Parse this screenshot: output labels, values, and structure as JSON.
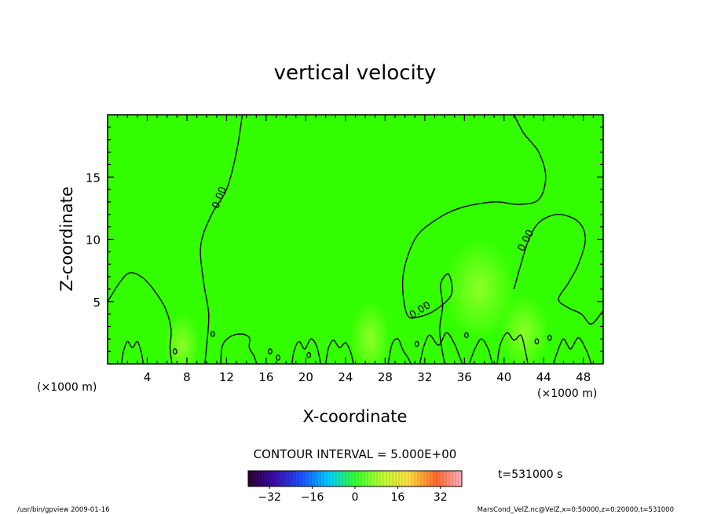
{
  "chart_data": {
    "type": "heatmap",
    "title": "vertical velocity",
    "xlabel": "X-coordinate",
    "ylabel": "Z-coordinate",
    "x_unit_left": "(×1000 m)",
    "x_unit_right": "(×1000 m)",
    "xlim": [
      0,
      50
    ],
    "ylim": [
      0,
      20
    ],
    "x_ticks": [
      4,
      8,
      12,
      16,
      20,
      24,
      28,
      32,
      36,
      40,
      44,
      48
    ],
    "x_tick_labels": [
      "4",
      "8",
      "12",
      "16",
      "20",
      "24",
      "28",
      "32",
      "36",
      "40",
      "44",
      "48"
    ],
    "y_ticks": [
      5,
      10,
      15
    ],
    "y_tick_labels": [
      "5",
      "10",
      "15"
    ],
    "contour_interval_label": "CONTOUR INTERVAL = 5.000E+00",
    "contour_labels": [
      "0.00",
      "0.00",
      "0.00"
    ],
    "time_label": "t=531000 s",
    "colorbar": {
      "ticks": [
        -32,
        -16,
        0,
        16,
        32
      ],
      "tick_labels": [
        "−32",
        "−16",
        "0",
        "16",
        "32"
      ],
      "range": [
        -40,
        40
      ]
    },
    "field_value_approx": 0,
    "background_color": "#33ff00",
    "highlight_color": "#b4ff3c",
    "footer_left": "/usr/bin/gpview   2009-01-16",
    "footer_right": "MarsCond_VelZ.nc@VelZ,x=0:50000,z=0:20000,t=531000",
    "zero_contours": [
      {
        "points": [
          [
            13.6,
            20
          ],
          [
            13,
            17
          ],
          [
            12,
            14
          ],
          [
            10.5,
            12
          ],
          [
            9.4,
            9.5
          ],
          [
            9.7,
            6.5
          ],
          [
            10.2,
            4
          ],
          [
            10,
            1.5
          ],
          [
            9.8,
            0
          ]
        ]
      },
      {
        "points": [
          [
            0,
            5
          ],
          [
            1.2,
            6.5
          ],
          [
            2.2,
            7.3
          ],
          [
            3.4,
            7
          ],
          [
            4.6,
            6
          ],
          [
            5.8,
            4.5
          ],
          [
            6.4,
            2.8
          ],
          [
            6.3,
            1.3
          ],
          [
            6.5,
            0
          ]
        ]
      },
      {
        "points": [
          [
            41,
            20
          ],
          [
            42,
            18.5
          ],
          [
            43.5,
            17
          ],
          [
            44.2,
            15
          ],
          [
            43.5,
            13.2
          ],
          [
            41.5,
            12.8
          ],
          [
            39,
            13
          ],
          [
            35.5,
            12.5
          ],
          [
            33,
            11.5
          ],
          [
            31,
            10
          ],
          [
            29.8,
            7
          ],
          [
            30.2,
            4
          ],
          [
            31.5,
            3.8
          ],
          [
            33.2,
            4.4
          ],
          [
            34.7,
            5.6
          ],
          [
            34.4,
            7.2
          ],
          [
            33.6,
            6.4
          ],
          [
            33.8,
            4.6
          ],
          [
            33.5,
            2.6
          ],
          [
            34,
            0
          ]
        ]
      },
      {
        "points": [
          [
            41,
            6
          ],
          [
            41.7,
            8
          ],
          [
            42.5,
            10
          ],
          [
            43.6,
            11.4
          ],
          [
            45.5,
            12
          ],
          [
            47.5,
            11.4
          ],
          [
            48.2,
            10
          ],
          [
            47.5,
            8
          ],
          [
            46.5,
            6.5
          ],
          [
            45.5,
            5.2
          ],
          [
            46.5,
            4.5
          ],
          [
            47.8,
            4
          ],
          [
            48.8,
            3.2
          ],
          [
            50,
            4.3
          ]
        ]
      },
      {
        "points": [
          [
            1.4,
            0
          ],
          [
            1.6,
            1
          ],
          [
            2,
            1.8
          ],
          [
            2.5,
            1.3
          ],
          [
            3,
            1.8
          ],
          [
            3.4,
            0.9
          ],
          [
            3.6,
            0
          ]
        ]
      },
      {
        "points": [
          [
            11.4,
            0
          ],
          [
            11.6,
            1.5
          ],
          [
            12.4,
            2.2
          ],
          [
            13.5,
            2.4
          ],
          [
            14.3,
            2.1
          ],
          [
            14.3,
            1.3
          ],
          [
            14.8,
            0.6
          ],
          [
            15,
            0
          ]
        ]
      },
      {
        "points": [
          [
            18.6,
            0
          ],
          [
            18.8,
            1
          ],
          [
            19.3,
            1.8
          ],
          [
            19.9,
            1.2
          ],
          [
            20.5,
            2
          ],
          [
            21.1,
            1.4
          ],
          [
            21.5,
            0
          ]
        ]
      },
      {
        "points": [
          [
            22,
            0
          ],
          [
            22.3,
            1.3
          ],
          [
            22.8,
            1.9
          ],
          [
            23.4,
            1.3
          ],
          [
            24,
            1.7
          ],
          [
            24.5,
            1
          ],
          [
            24.8,
            0
          ]
        ]
      },
      {
        "points": [
          [
            28.3,
            0
          ],
          [
            28.7,
            1.6
          ],
          [
            29.3,
            2
          ],
          [
            29.8,
            1.1
          ],
          [
            30.3,
            0.5
          ],
          [
            30.6,
            0
          ]
        ]
      },
      {
        "points": [
          [
            31.5,
            0
          ],
          [
            31.9,
            1.4
          ],
          [
            32.5,
            2.3
          ],
          [
            33.4,
            1.5
          ],
          [
            34.2,
            2.5
          ],
          [
            35,
            1.6
          ],
          [
            35.5,
            0.6
          ],
          [
            35.8,
            0
          ]
        ]
      },
      {
        "points": [
          [
            36.5,
            0
          ],
          [
            37,
            1.1
          ],
          [
            37.7,
            2
          ],
          [
            38.4,
            1.2
          ],
          [
            38.8,
            0
          ]
        ]
      },
      {
        "points": [
          [
            39.3,
            0
          ],
          [
            39.6,
            1.5
          ],
          [
            40.3,
            2.5
          ],
          [
            41,
            1.9
          ],
          [
            41.7,
            2.3
          ],
          [
            42.1,
            1.2
          ],
          [
            42.4,
            0
          ]
        ]
      },
      {
        "points": [
          [
            45,
            0
          ],
          [
            45.4,
            1
          ],
          [
            46,
            2
          ],
          [
            46.7,
            1.2
          ],
          [
            47.5,
            2.1
          ],
          [
            48.3,
            1.1
          ],
          [
            48.8,
            0
          ]
        ]
      }
    ],
    "small_loops": [
      [
        6.8,
        1
      ],
      [
        10.6,
        2.4
      ],
      [
        16.4,
        1
      ],
      [
        17.2,
        0.5
      ],
      [
        20.3,
        0.7
      ],
      [
        31.2,
        1.6
      ],
      [
        36.2,
        2.3
      ],
      [
        43.3,
        1.8
      ],
      [
        44.6,
        2.1
      ]
    ]
  }
}
